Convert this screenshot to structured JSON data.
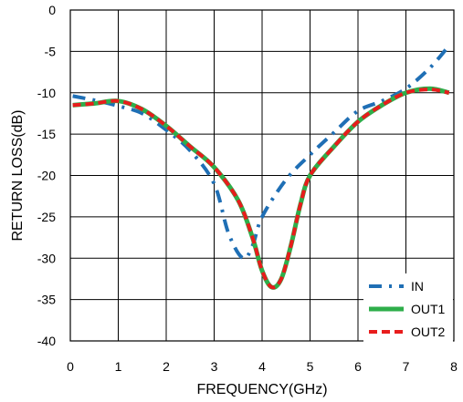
{
  "chart_data": {
    "type": "line",
    "title": "",
    "xlabel": "FREQUENCY(GHz)",
    "ylabel": "RETURN LOSS(dB)",
    "xlim": [
      0,
      8
    ],
    "ylim": [
      -40,
      0
    ],
    "xticks": [
      0,
      1,
      2,
      3,
      4,
      5,
      6,
      7,
      8
    ],
    "yticks": [
      0,
      -5,
      -10,
      -15,
      -20,
      -25,
      -30,
      -35,
      -40
    ],
    "grid": true,
    "legend_position": "bottom-right",
    "series": [
      {
        "name": "IN",
        "color": "#1F6FB5",
        "style": "dash-dot",
        "x": [
          0.05,
          0.5,
          1.0,
          1.5,
          2.0,
          2.5,
          3.0,
          3.3,
          3.6,
          3.8,
          4.0,
          4.5,
          5.0,
          5.5,
          6.0,
          6.5,
          7.0,
          7.5,
          7.9
        ],
        "y": [
          -10.4,
          -10.9,
          -11.6,
          -12.5,
          -14.5,
          -17.0,
          -21.0,
          -27.0,
          -30.0,
          -28.5,
          -25.0,
          -20.5,
          -17.5,
          -14.8,
          -12.2,
          -11.0,
          -9.5,
          -7.0,
          -4.3
        ]
      },
      {
        "name": "OUT1",
        "color": "#2EAE4A",
        "style": "solid",
        "x": [
          0.05,
          0.5,
          1.0,
          1.5,
          2.0,
          2.5,
          3.0,
          3.5,
          3.8,
          4.0,
          4.2,
          4.4,
          4.6,
          4.8,
          5.0,
          5.5,
          6.0,
          6.5,
          7.0,
          7.5,
          7.9
        ],
        "y": [
          -11.5,
          -11.3,
          -11.0,
          -12.0,
          -14.0,
          -16.5,
          -19.0,
          -23.0,
          -27.5,
          -31.5,
          -33.5,
          -32.5,
          -28.5,
          -23.5,
          -20.0,
          -16.5,
          -13.5,
          -11.5,
          -10.0,
          -9.5,
          -10.0
        ]
      },
      {
        "name": "OUT2",
        "color": "#E81C1C",
        "style": "dashed",
        "x": [
          0.05,
          0.5,
          1.0,
          1.5,
          2.0,
          2.5,
          3.0,
          3.5,
          3.8,
          4.0,
          4.2,
          4.4,
          4.6,
          4.8,
          5.0,
          5.5,
          6.0,
          6.5,
          7.0,
          7.5,
          7.9
        ],
        "y": [
          -11.5,
          -11.3,
          -11.0,
          -12.0,
          -14.0,
          -16.5,
          -19.0,
          -23.0,
          -27.5,
          -31.5,
          -33.5,
          -32.5,
          -28.5,
          -23.5,
          -20.0,
          -16.5,
          -13.5,
          -11.5,
          -10.0,
          -9.6,
          -10.0
        ]
      }
    ]
  }
}
